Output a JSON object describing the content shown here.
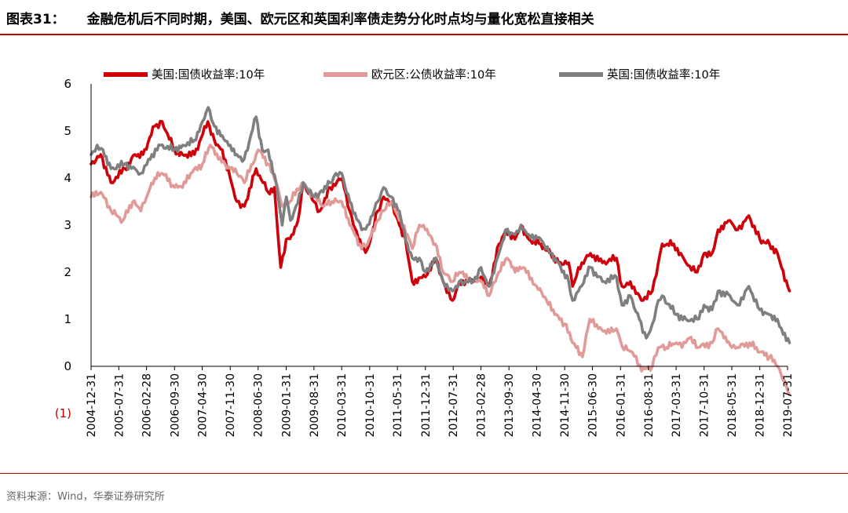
{
  "title": {
    "label": "图表31：",
    "text": "金融危机后不同时期，美国、欧元区和英国利率债走势分化时点均与量化宽松直接相关"
  },
  "source": "资料来源：Wind，华泰证券研究所",
  "chart_data": {
    "type": "line",
    "title": "",
    "xlabel": "",
    "ylabel": "",
    "ylim": [
      -1,
      6
    ],
    "yticks": [
      -1,
      0,
      1,
      2,
      3,
      4,
      5,
      6
    ],
    "ytick_labels": [
      "(1)",
      "0",
      "1",
      "2",
      "3",
      "4",
      "5",
      "6"
    ],
    "x_tick_labels": [
      "2004-12-31",
      "2005-07-31",
      "2006-02-28",
      "2006-09-30",
      "2007-04-30",
      "2007-11-30",
      "2008-06-30",
      "2009-01-31",
      "2009-08-31",
      "2010-03-31",
      "2010-10-31",
      "2011-05-31",
      "2011-12-31",
      "2012-07-31",
      "2013-02-28",
      "2013-09-30",
      "2014-04-30",
      "2014-11-30",
      "2015-06-30",
      "2016-01-31",
      "2016-08-31",
      "2017-03-31",
      "2017-10-31",
      "2018-05-31",
      "2018-12-31",
      "2019-07-31"
    ],
    "legend_position": "top",
    "grid": false,
    "series": [
      {
        "name": "美国:国债收益率:10年",
        "color": "#d0000b",
        "points": [
          [
            "2004-12-31",
            4.3
          ],
          [
            "2005-03-15",
            4.5
          ],
          [
            "2005-06-01",
            3.9
          ],
          [
            "2005-09-15",
            4.2
          ],
          [
            "2005-12-01",
            4.5
          ],
          [
            "2006-02-01",
            4.5
          ],
          [
            "2006-05-01",
            5.1
          ],
          [
            "2006-06-28",
            5.2
          ],
          [
            "2006-09-30",
            4.6
          ],
          [
            "2006-12-01",
            4.5
          ],
          [
            "2007-03-01",
            4.5
          ],
          [
            "2007-06-12",
            5.2
          ],
          [
            "2007-08-01",
            4.8
          ],
          [
            "2007-09-30",
            4.6
          ],
          [
            "2007-11-30",
            4.0
          ],
          [
            "2008-01-20",
            3.5
          ],
          [
            "2008-03-17",
            3.4
          ],
          [
            "2008-06-15",
            4.2
          ],
          [
            "2008-09-15",
            3.7
          ],
          [
            "2008-11-01",
            3.8
          ],
          [
            "2008-12-20",
            2.1
          ],
          [
            "2009-01-31",
            2.7
          ],
          [
            "2009-03-15",
            2.8
          ],
          [
            "2009-05-01",
            3.1
          ],
          [
            "2009-06-10",
            3.9
          ],
          [
            "2009-08-31",
            3.5
          ],
          [
            "2009-10-15",
            3.3
          ],
          [
            "2009-12-31",
            3.8
          ],
          [
            "2010-04-05",
            4.0
          ],
          [
            "2010-06-01",
            3.3
          ],
          [
            "2010-08-31",
            2.5
          ],
          [
            "2010-10-15",
            2.5
          ],
          [
            "2010-12-31",
            3.3
          ],
          [
            "2011-02-15",
            3.6
          ],
          [
            "2011-04-15",
            3.5
          ],
          [
            "2011-06-15",
            3.0
          ],
          [
            "2011-08-01",
            2.7
          ],
          [
            "2011-09-22",
            1.8
          ],
          [
            "2011-12-31",
            1.9
          ],
          [
            "2012-03-20",
            2.3
          ],
          [
            "2012-05-15",
            1.8
          ],
          [
            "2012-07-25",
            1.4
          ],
          [
            "2012-09-15",
            1.8
          ],
          [
            "2012-12-31",
            1.8
          ],
          [
            "2013-02-28",
            1.9
          ],
          [
            "2013-05-01",
            1.7
          ],
          [
            "2013-07-15",
            2.6
          ],
          [
            "2013-09-05",
            2.9
          ],
          [
            "2013-11-15",
            2.7
          ],
          [
            "2013-12-31",
            3.0
          ],
          [
            "2014-03-01",
            2.7
          ],
          [
            "2014-06-01",
            2.6
          ],
          [
            "2014-08-15",
            2.4
          ],
          [
            "2014-10-15",
            2.2
          ],
          [
            "2014-12-31",
            2.2
          ],
          [
            "2015-01-30",
            1.7
          ],
          [
            "2015-03-15",
            2.1
          ],
          [
            "2015-06-15",
            2.4
          ],
          [
            "2015-09-15",
            2.2
          ],
          [
            "2015-12-31",
            2.3
          ],
          [
            "2016-02-11",
            1.7
          ],
          [
            "2016-04-15",
            1.8
          ],
          [
            "2016-07-08",
            1.4
          ],
          [
            "2016-09-30",
            1.6
          ],
          [
            "2016-11-15",
            2.2
          ],
          [
            "2016-12-15",
            2.6
          ],
          [
            "2017-03-13",
            2.6
          ],
          [
            "2017-06-15",
            2.2
          ],
          [
            "2017-09-08",
            2.0
          ],
          [
            "2017-10-31",
            2.4
          ],
          [
            "2017-12-31",
            2.4
          ],
          [
            "2018-02-15",
            2.9
          ],
          [
            "2018-05-17",
            3.1
          ],
          [
            "2018-07-15",
            2.9
          ],
          [
            "2018-10-08",
            3.2
          ],
          [
            "2018-12-31",
            2.7
          ],
          [
            "2019-03-15",
            2.6
          ],
          [
            "2019-05-15",
            2.4
          ],
          [
            "2019-06-15",
            2.1
          ],
          [
            "2019-08-15",
            1.6
          ]
        ]
      },
      {
        "name": "欧元区:公债收益率:10年",
        "color": "#e09a98",
        "points": [
          [
            "2004-12-31",
            3.6
          ],
          [
            "2005-03-15",
            3.7
          ],
          [
            "2005-06-01",
            3.3
          ],
          [
            "2005-09-01",
            3.1
          ],
          [
            "2005-11-15",
            3.5
          ],
          [
            "2006-01-15",
            3.3
          ],
          [
            "2006-03-01",
            3.6
          ],
          [
            "2006-05-01",
            4.0
          ],
          [
            "2006-06-30",
            4.1
          ],
          [
            "2006-09-30",
            3.8
          ],
          [
            "2006-11-30",
            3.8
          ],
          [
            "2007-02-01",
            4.1
          ],
          [
            "2007-05-01",
            4.3
          ],
          [
            "2007-07-01",
            4.7
          ],
          [
            "2007-09-01",
            4.4
          ],
          [
            "2007-11-30",
            4.2
          ],
          [
            "2008-01-20",
            4.1
          ],
          [
            "2008-03-17",
            3.9
          ],
          [
            "2008-07-01",
            4.6
          ],
          [
            "2008-09-15",
            4.3
          ],
          [
            "2008-11-15",
            3.9
          ],
          [
            "2008-12-31",
            3.4
          ],
          [
            "2009-03-01",
            3.5
          ],
          [
            "2009-06-01",
            3.9
          ],
          [
            "2009-08-31",
            3.6
          ],
          [
            "2009-11-15",
            3.4
          ],
          [
            "2010-01-15",
            3.5
          ],
          [
            "2010-03-31",
            3.5
          ],
          [
            "2010-06-01",
            3.0
          ],
          [
            "2010-08-31",
            2.5
          ],
          [
            "2010-10-15",
            2.6
          ],
          [
            "2010-12-31",
            3.1
          ],
          [
            "2011-02-15",
            3.3
          ],
          [
            "2011-04-15",
            3.5
          ],
          [
            "2011-06-15",
            3.1
          ],
          [
            "2011-08-15",
            2.8
          ],
          [
            "2011-09-22",
            2.5
          ],
          [
            "2011-11-15",
            3.0
          ],
          [
            "2011-12-31",
            2.9
          ],
          [
            "2012-03-15",
            2.6
          ],
          [
            "2012-05-15",
            2.0
          ],
          [
            "2012-07-25",
            1.8
          ],
          [
            "2012-09-15",
            2.0
          ],
          [
            "2012-12-31",
            1.8
          ],
          [
            "2013-02-28",
            1.8
          ],
          [
            "2013-05-01",
            1.5
          ],
          [
            "2013-07-15",
            2.0
          ],
          [
            "2013-09-15",
            2.3
          ],
          [
            "2013-11-15",
            2.0
          ],
          [
            "2014-01-15",
            2.1
          ],
          [
            "2014-04-30",
            1.7
          ],
          [
            "2014-07-15",
            1.4
          ],
          [
            "2014-09-15",
            1.1
          ],
          [
            "2014-11-30",
            0.9
          ],
          [
            "2015-01-31",
            0.5
          ],
          [
            "2015-04-15",
            0.2
          ],
          [
            "2015-06-10",
            1.0
          ],
          [
            "2015-08-15",
            0.8
          ],
          [
            "2015-10-15",
            0.7
          ],
          [
            "2015-12-31",
            0.8
          ],
          [
            "2016-02-15",
            0.4
          ],
          [
            "2016-05-01",
            0.3
          ],
          [
            "2016-07-10",
            -0.1
          ],
          [
            "2016-09-30",
            0.0
          ],
          [
            "2016-11-15",
            0.4
          ],
          [
            "2017-01-15",
            0.4
          ],
          [
            "2017-03-31",
            0.5
          ],
          [
            "2017-05-15",
            0.4
          ],
          [
            "2017-07-10",
            0.6
          ],
          [
            "2017-09-15",
            0.4
          ],
          [
            "2017-12-31",
            0.5
          ],
          [
            "2018-02-15",
            0.8
          ],
          [
            "2018-04-01",
            0.6
          ],
          [
            "2018-05-31",
            0.4
          ],
          [
            "2018-07-15",
            0.4
          ],
          [
            "2018-10-15",
            0.5
          ],
          [
            "2018-12-31",
            0.3
          ],
          [
            "2019-03-15",
            0.2
          ],
          [
            "2019-05-15",
            0.0
          ],
          [
            "2019-06-15",
            -0.2
          ],
          [
            "2019-08-15",
            -0.6
          ]
        ]
      },
      {
        "name": "英国:国债收益率:10年",
        "color": "#7f7f7f",
        "points": [
          [
            "2004-12-31",
            4.5
          ],
          [
            "2005-02-15",
            4.7
          ],
          [
            "2005-04-01",
            4.6
          ],
          [
            "2005-06-01",
            4.2
          ],
          [
            "2005-09-15",
            4.3
          ],
          [
            "2005-12-01",
            4.2
          ],
          [
            "2006-01-15",
            4.1
          ],
          [
            "2006-03-15",
            4.4
          ],
          [
            "2006-06-15",
            4.7
          ],
          [
            "2006-09-30",
            4.6
          ],
          [
            "2006-12-01",
            4.7
          ],
          [
            "2007-03-01",
            4.8
          ],
          [
            "2007-05-01",
            5.2
          ],
          [
            "2007-06-15",
            5.5
          ],
          [
            "2007-08-01",
            5.1
          ],
          [
            "2007-09-30",
            4.9
          ],
          [
            "2007-11-30",
            4.7
          ],
          [
            "2008-01-20",
            4.5
          ],
          [
            "2008-03-15",
            4.4
          ],
          [
            "2008-06-15",
            5.3
          ],
          [
            "2008-08-01",
            4.6
          ],
          [
            "2008-09-15",
            4.6
          ],
          [
            "2008-11-15",
            3.9
          ],
          [
            "2008-12-31",
            3.0
          ],
          [
            "2009-02-01",
            3.6
          ],
          [
            "2009-03-05",
            3.1
          ],
          [
            "2009-04-15",
            3.4
          ],
          [
            "2009-06-10",
            3.9
          ],
          [
            "2009-08-31",
            3.6
          ],
          [
            "2009-10-15",
            3.7
          ],
          [
            "2009-12-31",
            3.9
          ],
          [
            "2010-02-15",
            4.1
          ],
          [
            "2010-03-31",
            4.1
          ],
          [
            "2010-06-01",
            3.5
          ],
          [
            "2010-08-31",
            2.9
          ],
          [
            "2010-10-15",
            3.0
          ],
          [
            "2010-12-31",
            3.5
          ],
          [
            "2011-02-15",
            3.8
          ],
          [
            "2011-04-15",
            3.6
          ],
          [
            "2011-06-15",
            3.3
          ],
          [
            "2011-08-15",
            2.6
          ],
          [
            "2011-09-22",
            2.3
          ],
          [
            "2011-11-15",
            2.3
          ],
          [
            "2011-12-31",
            2.0
          ],
          [
            "2012-03-20",
            2.3
          ],
          [
            "2012-05-15",
            1.8
          ],
          [
            "2012-07-25",
            1.6
          ],
          [
            "2012-09-15",
            1.8
          ],
          [
            "2012-12-31",
            1.8
          ],
          [
            "2013-02-28",
            2.1
          ],
          [
            "2013-05-01",
            1.7
          ],
          [
            "2013-07-15",
            2.4
          ],
          [
            "2013-09-05",
            2.9
          ],
          [
            "2013-11-15",
            2.8
          ],
          [
            "2013-12-31",
            3.0
          ],
          [
            "2014-03-01",
            2.8
          ],
          [
            "2014-06-01",
            2.7
          ],
          [
            "2014-08-15",
            2.4
          ],
          [
            "2014-10-15",
            2.2
          ],
          [
            "2014-12-31",
            1.8
          ],
          [
            "2015-01-30",
            1.4
          ],
          [
            "2015-03-15",
            1.6
          ],
          [
            "2015-06-15",
            2.1
          ],
          [
            "2015-09-15",
            1.8
          ],
          [
            "2015-12-31",
            1.9
          ],
          [
            "2016-02-11",
            1.3
          ],
          [
            "2016-04-15",
            1.5
          ],
          [
            "2016-06-23",
            1.0
          ],
          [
            "2016-08-15",
            0.6
          ],
          [
            "2016-09-30",
            0.9
          ],
          [
            "2016-11-15",
            1.4
          ],
          [
            "2016-12-15",
            1.5
          ],
          [
            "2017-03-31",
            1.1
          ],
          [
            "2017-06-15",
            1.0
          ],
          [
            "2017-09-08",
            1.0
          ],
          [
            "2017-10-31",
            1.3
          ],
          [
            "2017-12-31",
            1.2
          ],
          [
            "2018-02-15",
            1.6
          ],
          [
            "2018-05-17",
            1.5
          ],
          [
            "2018-07-15",
            1.3
          ],
          [
            "2018-10-08",
            1.7
          ],
          [
            "2018-12-31",
            1.2
          ],
          [
            "2019-03-15",
            1.1
          ],
          [
            "2019-05-15",
            1.0
          ],
          [
            "2019-06-15",
            0.8
          ],
          [
            "2019-08-15",
            0.5
          ]
        ]
      }
    ]
  }
}
